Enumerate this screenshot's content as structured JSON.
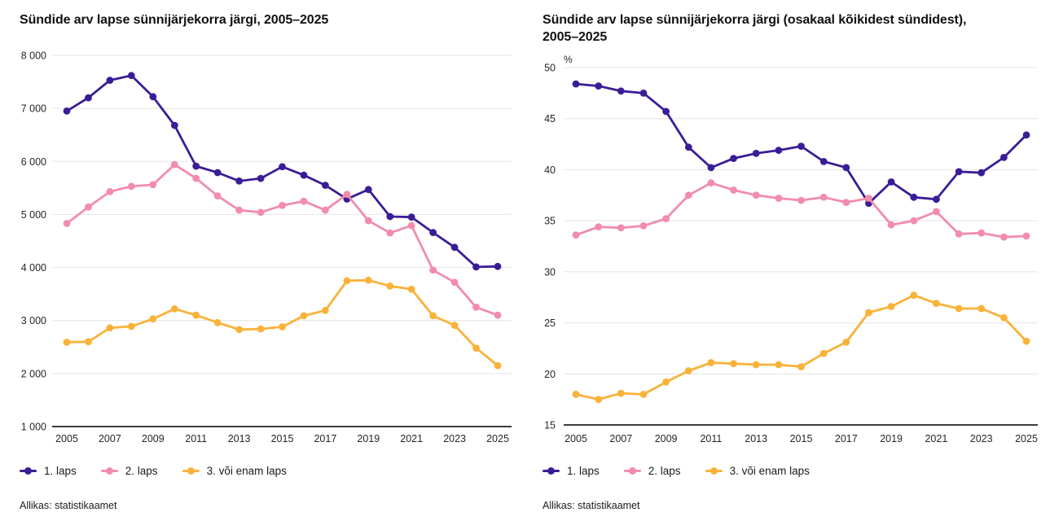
{
  "chart_data": [
    {
      "type": "line",
      "title": "Sündide arv lapse sünnijärjekorra järgi, 2005–2025",
      "x": [
        2005,
        2006,
        2007,
        2008,
        2009,
        2010,
        2011,
        2012,
        2013,
        2014,
        2015,
        2016,
        2017,
        2018,
        2019,
        2020,
        2021,
        2022,
        2023,
        2024,
        2025
      ],
      "xticks": [
        2005,
        2007,
        2009,
        2011,
        2013,
        2015,
        2017,
        2019,
        2021,
        2023,
        2025
      ],
      "ylim": [
        1000,
        8000
      ],
      "yticks": [
        1000,
        2000,
        3000,
        4000,
        5000,
        6000,
        7000,
        8000
      ],
      "ytick_labels": [
        "1 000",
        "2 000",
        "3 000",
        "4 000",
        "5 000",
        "6 000",
        "7 000",
        "8 000"
      ],
      "ylabel": "",
      "grid": true,
      "legend_position": "bottom",
      "series": [
        {
          "name": "1. laps",
          "color": "#3a1d96",
          "values": [
            6950,
            7200,
            7530,
            7620,
            7220,
            6680,
            5910,
            5790,
            5630,
            5680,
            5900,
            5740,
            5550,
            5290,
            5470,
            4960,
            4950,
            4660,
            4380,
            4010,
            4020
          ]
        },
        {
          "name": "2. laps",
          "color": "#f28cab",
          "values": [
            4830,
            5140,
            5430,
            5530,
            5560,
            5940,
            5680,
            5350,
            5080,
            5040,
            5170,
            5250,
            5080,
            5380,
            4880,
            4650,
            4790,
            3950,
            3720,
            3250,
            3100
          ]
        },
        {
          "name": "3. või enam laps",
          "color": "#f9b239",
          "values": [
            2590,
            2600,
            2860,
            2890,
            3030,
            3220,
            3100,
            2960,
            2830,
            2840,
            2880,
            3090,
            3190,
            3750,
            3760,
            3650,
            3590,
            3090,
            2910,
            2480,
            2150
          ]
        }
      ],
      "source": "Allikas: statistikaamet"
    },
    {
      "type": "line",
      "title": "Sündide arv lapse sünnijärjekorra järgi (osakaal kõikidest sündidest), 2005–2025",
      "x": [
        2005,
        2006,
        2007,
        2008,
        2009,
        2010,
        2011,
        2012,
        2013,
        2014,
        2015,
        2016,
        2017,
        2018,
        2019,
        2020,
        2021,
        2022,
        2023,
        2024,
        2025
      ],
      "xticks": [
        2005,
        2007,
        2009,
        2011,
        2013,
        2015,
        2017,
        2019,
        2021,
        2023,
        2025
      ],
      "ylim": [
        15,
        50
      ],
      "yticks": [
        15,
        20,
        25,
        30,
        35,
        40,
        45,
        50
      ],
      "ytick_labels": [
        "15",
        "20",
        "25",
        "30",
        "35",
        "40",
        "45",
        "50"
      ],
      "ylabel": "%",
      "grid": true,
      "legend_position": "bottom",
      "series": [
        {
          "name": "1. laps",
          "color": "#3a1d96",
          "values": [
            48.4,
            48.2,
            47.7,
            47.5,
            45.7,
            42.2,
            40.2,
            41.1,
            41.6,
            41.9,
            42.3,
            40.8,
            40.2,
            36.7,
            38.8,
            37.3,
            37.1,
            39.8,
            39.7,
            41.2,
            43.4
          ]
        },
        {
          "name": "2. laps",
          "color": "#f28cab",
          "values": [
            33.6,
            34.4,
            34.3,
            34.5,
            35.2,
            37.5,
            38.7,
            38.0,
            37.5,
            37.2,
            37.0,
            37.3,
            36.8,
            37.2,
            34.6,
            35.0,
            35.9,
            33.7,
            33.8,
            33.4,
            33.5
          ]
        },
        {
          "name": "3. või enam laps",
          "color": "#f9b239",
          "values": [
            18.0,
            17.5,
            18.1,
            18.0,
            19.2,
            20.3,
            21.1,
            21.0,
            20.9,
            20.9,
            20.7,
            22.0,
            23.1,
            26.0,
            26.6,
            27.7,
            26.9,
            26.4,
            26.4,
            25.5,
            23.2
          ]
        }
      ],
      "source": "Allikas: statistikaamet"
    }
  ]
}
